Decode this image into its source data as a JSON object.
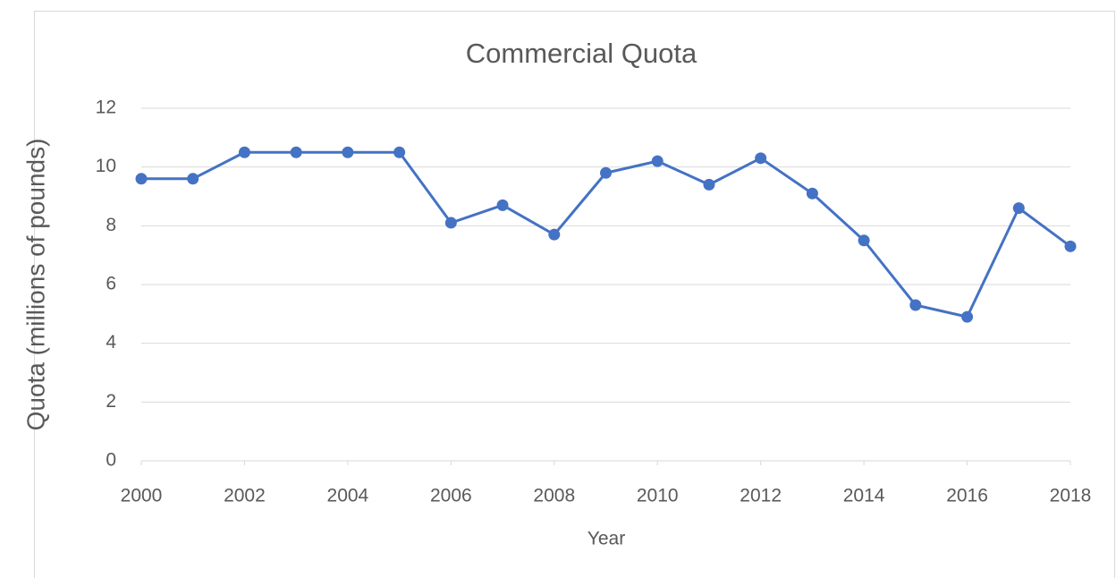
{
  "chart_data": {
    "type": "line",
    "title": "Commercial Quota",
    "x_label": "Year",
    "y_label": "Quota (millions of pounds)",
    "x": [
      2000,
      2001,
      2002,
      2003,
      2004,
      2005,
      2006,
      2007,
      2008,
      2009,
      2010,
      2011,
      2012,
      2013,
      2014,
      2015,
      2016,
      2017,
      2018
    ],
    "series": [
      {
        "name": "Commercial Quota",
        "color": "#4472c4",
        "values": [
          9.6,
          9.6,
          10.5,
          10.5,
          10.5,
          10.5,
          8.1,
          8.7,
          7.7,
          9.8,
          10.2,
          9.4,
          10.3,
          9.1,
          7.5,
          5.3,
          4.9,
          8.6,
          7.3
        ]
      }
    ],
    "xlim": [
      2000,
      2018
    ],
    "xticks": [
      2000,
      2002,
      2004,
      2006,
      2008,
      2010,
      2012,
      2014,
      2016,
      2018
    ],
    "ylim": [
      0,
      12
    ],
    "yticks": [
      0,
      2,
      4,
      6,
      8,
      10,
      12
    ],
    "grid": true
  }
}
